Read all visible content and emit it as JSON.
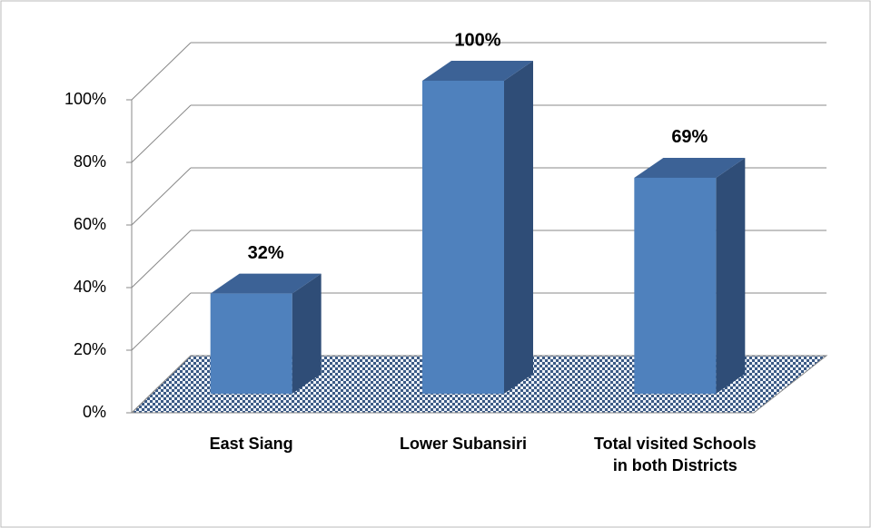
{
  "chart_data": {
    "type": "bar3d",
    "categories": [
      "East Siang",
      "Lower Subansiri",
      "Total visited Schools in both Districts"
    ],
    "values": [
      32,
      100,
      69
    ],
    "value_labels": [
      "32%",
      "100%",
      "69%"
    ],
    "color": "#4f81bd",
    "ylim": [
      0,
      100
    ],
    "yticks": [
      {
        "value": 0,
        "label": "0%"
      },
      {
        "value": 20,
        "label": "20%"
      },
      {
        "value": 40,
        "label": "40%"
      },
      {
        "value": 60,
        "label": "60%"
      },
      {
        "value": 80,
        "label": "80%"
      },
      {
        "value": 100,
        "label": "100%"
      }
    ],
    "grid": true
  }
}
